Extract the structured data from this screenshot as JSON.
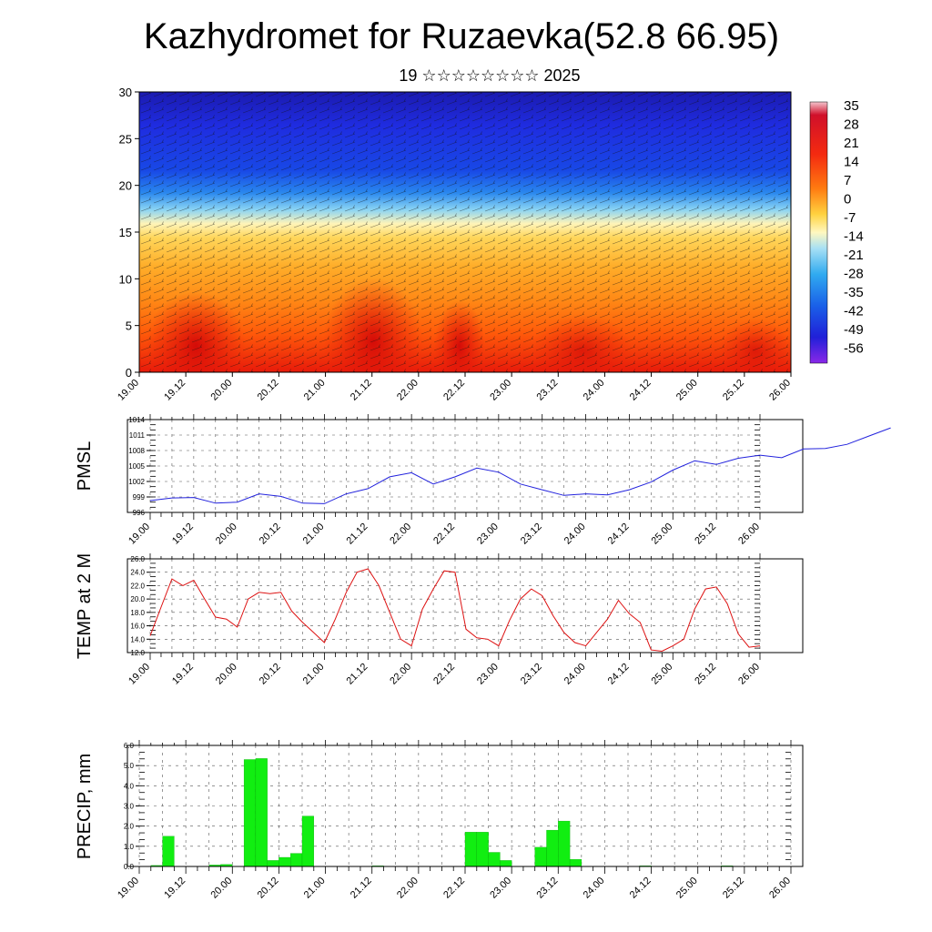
{
  "page_title": "Kazhydromet for Ruzaevka(52.8 66.95)",
  "date_label": "19 ☆☆☆☆☆☆☆☆ 2025",
  "colors": {
    "pmsl_line": "#2222dd",
    "temp_line": "#dd1111",
    "precip_bar": "#11ee11",
    "grid": "#555555"
  },
  "time_labels": [
    "19.00",
    "19.12",
    "20.00",
    "20.12",
    "21.00",
    "21.12",
    "22.00",
    "22.12",
    "23.00",
    "23.12",
    "24.00",
    "24.12",
    "25.00",
    "25.12",
    "26.00"
  ],
  "chart_data": [
    {
      "type": "heatmap",
      "ylim": [
        0,
        30
      ],
      "yticks": [
        0,
        5,
        10,
        15,
        20,
        25,
        30
      ],
      "colorbar_labels": [
        "35",
        "28",
        "21",
        "14",
        "7",
        "0",
        "-7",
        "-14",
        "-21",
        "-28",
        "-35",
        "-42",
        "-49",
        "-56"
      ],
      "note": "vertical cross-section of temperature with wind barbs"
    },
    {
      "type": "line",
      "ylabel": "PMSL",
      "ylim": [
        996,
        1014
      ],
      "yticks": [
        996,
        999,
        1002,
        1005,
        1008,
        1011,
        1014
      ],
      "x_range": [
        0,
        168
      ],
      "x_step": 6,
      "values": [
        998.3,
        998.8,
        998.9,
        997.8,
        998,
        999.6,
        999.1,
        997.8,
        997.7,
        999.6,
        1000.6,
        1002.9,
        1003.7,
        1001.5,
        1002.9,
        1004.6,
        1003.8,
        1001.5,
        1000.4,
        999.3,
        999.6,
        999.4,
        1000.4,
        1001.9,
        1004.2,
        1006,
        1005.3,
        1006.5,
        1007.1,
        1006.6,
        1008.3,
        1008.4,
        1009.2,
        1010.8,
        1012.4
      ]
    },
    {
      "type": "line",
      "ylabel": "TEMP at 2 M",
      "ylim": [
        12,
        26
      ],
      "yticks": [
        "12.0",
        "14.0",
        "16.0",
        "18.0",
        "20.0",
        "22.0",
        "24.0",
        "26.0"
      ],
      "x_range": [
        0,
        168
      ],
      "values": [
        14.5,
        18.8,
        23,
        22,
        22.8,
        20,
        17.3,
        17,
        15.8,
        20,
        21,
        20.8,
        21,
        18.2,
        16.5,
        15,
        13.5,
        17,
        21,
        24,
        24.5,
        22,
        18,
        14,
        13,
        18.5,
        21.5,
        24.2,
        24,
        15.5,
        14.2,
        14,
        13,
        16.8,
        20,
        21.5,
        20.5,
        17.5,
        15,
        13.5,
        13,
        15,
        17,
        19.8,
        17.8,
        16.5,
        12.4,
        12.2,
        13,
        14,
        18.5,
        21.5,
        21.8,
        19.3,
        14.8,
        12.8,
        13
      ]
    },
    {
      "type": "bar",
      "ylabel": "PRECIP, mm",
      "ylim": [
        0,
        6
      ],
      "yticks": [
        "0.0",
        "1.0",
        "2.0",
        "3.0",
        "4.0",
        "5.0",
        "6.0"
      ],
      "x_range": [
        0,
        168
      ],
      "bar_width_hours": 3,
      "bars": [
        {
          "x": 6,
          "value": 0.05
        },
        {
          "x": 9,
          "value": 1.5
        },
        {
          "x": 21,
          "value": 0.07
        },
        {
          "x": 24,
          "value": 0.1
        },
        {
          "x": 30,
          "value": 5.3
        },
        {
          "x": 33,
          "value": 5.35
        },
        {
          "x": 36,
          "value": 0.3
        },
        {
          "x": 39,
          "value": 0.45
        },
        {
          "x": 42,
          "value": 0.65
        },
        {
          "x": 45,
          "value": 2.5
        },
        {
          "x": 63,
          "value": 0.03
        },
        {
          "x": 87,
          "value": 1.7
        },
        {
          "x": 90,
          "value": 1.7
        },
        {
          "x": 93,
          "value": 0.7
        },
        {
          "x": 96,
          "value": 0.3
        },
        {
          "x": 105,
          "value": 0.95
        },
        {
          "x": 108,
          "value": 1.8
        },
        {
          "x": 111,
          "value": 2.25
        },
        {
          "x": 114,
          "value": 0.35
        },
        {
          "x": 132,
          "value": 0.03
        },
        {
          "x": 153,
          "value": 0.03
        }
      ]
    }
  ]
}
